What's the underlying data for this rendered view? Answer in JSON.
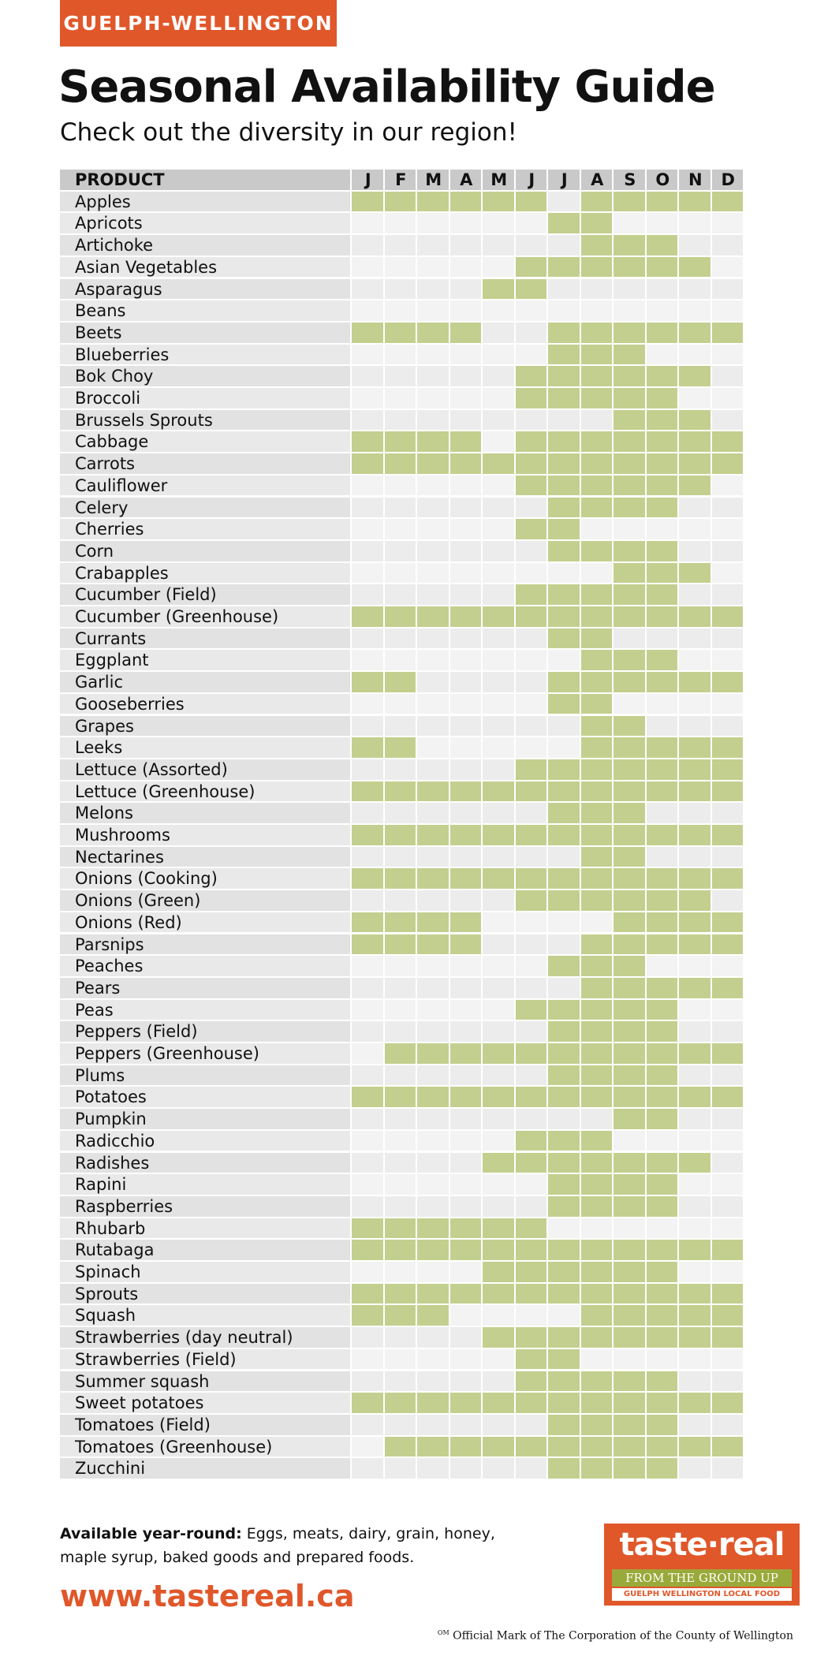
{
  "header": {
    "region": "GUELPH-WELLINGTON",
    "title": "Seasonal Availability Guide",
    "subtitle": "Check out the diversity in our region!"
  },
  "table": {
    "columns": [
      "PRODUCT",
      "J",
      "F",
      "M",
      "A",
      "M",
      "J",
      "J",
      "A",
      "S",
      "O",
      "N",
      "D"
    ],
    "rows": [
      {
        "product": "Apples",
        "available": [
          1,
          1,
          1,
          1,
          1,
          1,
          0,
          1,
          1,
          1,
          1,
          1
        ]
      },
      {
        "product": "Apricots",
        "available": [
          0,
          0,
          0,
          0,
          0,
          0,
          1,
          1,
          0,
          0,
          0,
          0
        ]
      },
      {
        "product": "Artichoke",
        "available": [
          0,
          0,
          0,
          0,
          0,
          0,
          0,
          1,
          1,
          1,
          0,
          0
        ]
      },
      {
        "product": "Asian Vegetables",
        "available": [
          0,
          0,
          0,
          0,
          0,
          1,
          1,
          1,
          1,
          1,
          1,
          0
        ]
      },
      {
        "product": "Asparagus",
        "available": [
          0,
          0,
          0,
          0,
          1,
          1,
          0,
          0,
          0,
          0,
          0,
          0
        ]
      },
      {
        "product": "Beans",
        "available": [
          0,
          0,
          0,
          0,
          0,
          0,
          0,
          0,
          0,
          0,
          0,
          0
        ]
      },
      {
        "product": "Beets",
        "available": [
          1,
          1,
          1,
          1,
          0,
          0,
          1,
          1,
          1,
          1,
          1,
          1
        ]
      },
      {
        "product": "Blueberries",
        "available": [
          0,
          0,
          0,
          0,
          0,
          0,
          1,
          1,
          1,
          0,
          0,
          0
        ]
      },
      {
        "product": "Bok Choy",
        "available": [
          0,
          0,
          0,
          0,
          0,
          1,
          1,
          1,
          1,
          1,
          1,
          0
        ]
      },
      {
        "product": "Broccoli",
        "available": [
          0,
          0,
          0,
          0,
          0,
          1,
          1,
          1,
          1,
          1,
          0,
          0
        ]
      },
      {
        "product": "Brussels Sprouts",
        "available": [
          0,
          0,
          0,
          0,
          0,
          0,
          0,
          0,
          1,
          1,
          1,
          0
        ]
      },
      {
        "product": "Cabbage",
        "available": [
          1,
          1,
          1,
          1,
          0,
          1,
          1,
          1,
          1,
          1,
          1,
          1
        ]
      },
      {
        "product": "Carrots",
        "available": [
          1,
          1,
          1,
          1,
          1,
          1,
          1,
          1,
          1,
          1,
          1,
          1
        ]
      },
      {
        "product": "Cauliflower",
        "available": [
          0,
          0,
          0,
          0,
          0,
          1,
          1,
          1,
          1,
          1,
          1,
          0
        ]
      },
      {
        "product": "Celery",
        "available": [
          0,
          0,
          0,
          0,
          0,
          0,
          1,
          1,
          1,
          1,
          0,
          0
        ]
      },
      {
        "product": "Cherries",
        "available": [
          0,
          0,
          0,
          0,
          0,
          1,
          1,
          0,
          0,
          0,
          0,
          0
        ]
      },
      {
        "product": "Corn",
        "available": [
          0,
          0,
          0,
          0,
          0,
          0,
          1,
          1,
          1,
          1,
          0,
          0
        ]
      },
      {
        "product": "Crabapples",
        "available": [
          0,
          0,
          0,
          0,
          0,
          0,
          0,
          0,
          1,
          1,
          1,
          0
        ]
      },
      {
        "product": "Cucumber (Field)",
        "available": [
          0,
          0,
          0,
          0,
          0,
          1,
          1,
          1,
          1,
          1,
          0,
          0
        ]
      },
      {
        "product": "Cucumber (Greenhouse)",
        "available": [
          1,
          1,
          1,
          1,
          1,
          1,
          1,
          1,
          1,
          1,
          1,
          1
        ]
      },
      {
        "product": "Currants",
        "available": [
          0,
          0,
          0,
          0,
          0,
          0,
          1,
          1,
          0,
          0,
          0,
          0
        ]
      },
      {
        "product": "Eggplant",
        "available": [
          0,
          0,
          0,
          0,
          0,
          0,
          0,
          1,
          1,
          1,
          0,
          0
        ]
      },
      {
        "product": "Garlic",
        "available": [
          1,
          1,
          0,
          0,
          0,
          0,
          1,
          1,
          1,
          1,
          1,
          1
        ]
      },
      {
        "product": "Gooseberries",
        "available": [
          0,
          0,
          0,
          0,
          0,
          0,
          1,
          1,
          0,
          0,
          0,
          0
        ]
      },
      {
        "product": "Grapes",
        "available": [
          0,
          0,
          0,
          0,
          0,
          0,
          0,
          1,
          1,
          0,
          0,
          0
        ]
      },
      {
        "product": "Leeks",
        "available": [
          1,
          1,
          0,
          0,
          0,
          0,
          0,
          1,
          1,
          1,
          1,
          1
        ]
      },
      {
        "product": "Lettuce (Assorted)",
        "available": [
          0,
          0,
          0,
          0,
          0,
          1,
          1,
          1,
          1,
          1,
          1,
          1
        ]
      },
      {
        "product": "Lettuce (Greenhouse)",
        "available": [
          1,
          1,
          1,
          1,
          1,
          1,
          1,
          1,
          1,
          1,
          1,
          1
        ]
      },
      {
        "product": "Melons",
        "available": [
          0,
          0,
          0,
          0,
          0,
          0,
          1,
          1,
          1,
          0,
          0,
          0
        ]
      },
      {
        "product": "Mushrooms",
        "available": [
          1,
          1,
          1,
          1,
          1,
          1,
          1,
          1,
          1,
          1,
          1,
          1
        ]
      },
      {
        "product": "Nectarines",
        "available": [
          0,
          0,
          0,
          0,
          0,
          0,
          0,
          1,
          1,
          0,
          0,
          0
        ]
      },
      {
        "product": "Onions (Cooking)",
        "available": [
          1,
          1,
          1,
          1,
          1,
          1,
          1,
          1,
          1,
          1,
          1,
          1
        ]
      },
      {
        "product": "Onions (Green)",
        "available": [
          0,
          0,
          0,
          0,
          0,
          1,
          1,
          1,
          1,
          1,
          1,
          0
        ]
      },
      {
        "product": "Onions (Red)",
        "available": [
          1,
          1,
          1,
          1,
          0,
          0,
          0,
          0,
          1,
          1,
          1,
          1
        ]
      },
      {
        "product": "Parsnips",
        "available": [
          1,
          1,
          1,
          1,
          0,
          0,
          0,
          1,
          1,
          1,
          1,
          1
        ]
      },
      {
        "product": "Peaches",
        "available": [
          0,
          0,
          0,
          0,
          0,
          0,
          1,
          1,
          1,
          0,
          0,
          0
        ]
      },
      {
        "product": "Pears",
        "available": [
          0,
          0,
          0,
          0,
          0,
          0,
          0,
          1,
          1,
          1,
          1,
          1
        ]
      },
      {
        "product": "Peas",
        "available": [
          0,
          0,
          0,
          0,
          0,
          1,
          1,
          1,
          1,
          1,
          0,
          0
        ]
      },
      {
        "product": "Peppers (Field)",
        "available": [
          0,
          0,
          0,
          0,
          0,
          0,
          1,
          1,
          1,
          1,
          0,
          0
        ]
      },
      {
        "product": "Peppers (Greenhouse)",
        "available": [
          0,
          1,
          1,
          1,
          1,
          1,
          1,
          1,
          1,
          1,
          1,
          1
        ]
      },
      {
        "product": "Plums",
        "available": [
          0,
          0,
          0,
          0,
          0,
          0,
          1,
          1,
          1,
          1,
          0,
          0
        ]
      },
      {
        "product": "Potatoes",
        "available": [
          1,
          1,
          1,
          1,
          1,
          1,
          1,
          1,
          1,
          1,
          1,
          1
        ]
      },
      {
        "product": "Pumpkin",
        "available": [
          0,
          0,
          0,
          0,
          0,
          0,
          0,
          0,
          1,
          1,
          0,
          0
        ]
      },
      {
        "product": "Radicchio",
        "available": [
          0,
          0,
          0,
          0,
          0,
          1,
          1,
          1,
          0,
          0,
          0,
          0
        ]
      },
      {
        "product": "Radishes",
        "available": [
          0,
          0,
          0,
          0,
          1,
          1,
          1,
          1,
          1,
          1,
          1,
          0
        ]
      },
      {
        "product": "Rapini",
        "available": [
          0,
          0,
          0,
          0,
          0,
          0,
          1,
          1,
          1,
          1,
          0,
          0
        ]
      },
      {
        "product": "Raspberries",
        "available": [
          0,
          0,
          0,
          0,
          0,
          0,
          1,
          1,
          1,
          1,
          0,
          0
        ]
      },
      {
        "product": "Rhubarb",
        "available": [
          1,
          1,
          1,
          1,
          1,
          1,
          0,
          0,
          0,
          0,
          0,
          0
        ]
      },
      {
        "product": "Rutabaga",
        "available": [
          1,
          1,
          1,
          1,
          1,
          1,
          1,
          1,
          1,
          1,
          1,
          1
        ]
      },
      {
        "product": "Spinach",
        "available": [
          0,
          0,
          0,
          0,
          1,
          1,
          1,
          1,
          1,
          1,
          0,
          0
        ]
      },
      {
        "product": "Sprouts",
        "available": [
          1,
          1,
          1,
          1,
          1,
          1,
          1,
          1,
          1,
          1,
          1,
          1
        ]
      },
      {
        "product": "Squash",
        "available": [
          1,
          1,
          1,
          0,
          0,
          0,
          0,
          1,
          1,
          1,
          1,
          1
        ]
      },
      {
        "product": "Strawberries (day neutral)",
        "available": [
          0,
          0,
          0,
          0,
          1,
          1,
          1,
          1,
          1,
          1,
          1,
          1
        ]
      },
      {
        "product": "Strawberries (Field)",
        "available": [
          0,
          0,
          0,
          0,
          0,
          1,
          1,
          0,
          0,
          0,
          0,
          0
        ]
      },
      {
        "product": "Summer squash",
        "available": [
          0,
          0,
          0,
          0,
          0,
          1,
          1,
          1,
          1,
          1,
          0,
          0
        ]
      },
      {
        "product": "Sweet potatoes",
        "available": [
          1,
          1,
          1,
          1,
          1,
          1,
          1,
          1,
          1,
          1,
          1,
          1
        ]
      },
      {
        "product": "Tomatoes (Field)",
        "available": [
          0,
          0,
          0,
          0,
          0,
          0,
          1,
          1,
          1,
          1,
          0,
          0
        ]
      },
      {
        "product": "Tomatoes (Greenhouse)",
        "available": [
          0,
          1,
          1,
          1,
          1,
          1,
          1,
          1,
          1,
          1,
          1,
          1
        ]
      },
      {
        "product": "Zucchini",
        "available": [
          0,
          0,
          0,
          0,
          0,
          0,
          1,
          1,
          1,
          1,
          0,
          0
        ]
      }
    ]
  },
  "footer": {
    "note_label": "Available year-round:",
    "note": "Eggs, meats, dairy, grain, honey, maple syrup, baked goods and prepared foods.",
    "url": "www.tastereal.ca",
    "logo": {
      "name": "taste·real",
      "tagline": "FROM THE GROUND UP",
      "subline": "GUELPH WELLINGTON LOCAL FOOD"
    },
    "trademark_sup": "OM",
    "trademark": "Official Mark of The Corporation of the County of Wellington"
  }
}
